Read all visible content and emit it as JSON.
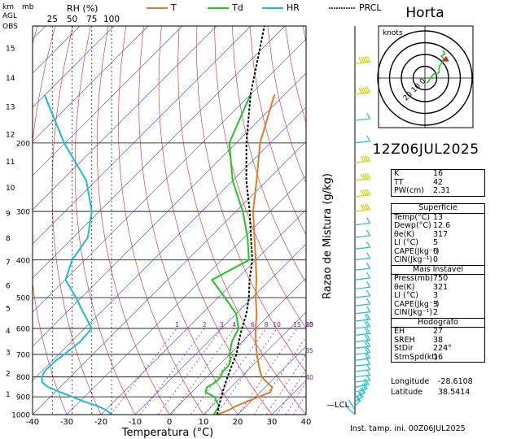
{
  "station": "Horta",
  "datetime": "12Z06JUL2025",
  "footer": "Inst. tamp. ini. 00Z06JUL2025",
  "location": {
    "lon_label": "Longitude",
    "lon": "-28.6108",
    "lat_label": "Latitude",
    "lat": "38.5414"
  },
  "labels": {
    "km": "km",
    "agl": "AGL",
    "mb": "mb",
    "obs": "OBS",
    "rh": "RH (%)",
    "mixing": "Razao de Mistura (g/kg)",
    "xlabel": "Temperatura (°C)",
    "knots": "knots",
    "lcl": "LCL"
  },
  "legend": [
    {
      "name": "T",
      "color": "#e07d28"
    },
    {
      "name": "Td",
      "color": "#1ec81e"
    },
    {
      "name": "HR",
      "color": "#19c0cc"
    },
    {
      "name": "PRCL",
      "color": "#000000"
    }
  ],
  "indices": [
    {
      "k": "K",
      "v": "16"
    },
    {
      "k": "TT",
      "v": "42"
    },
    {
      "k": "PW(cm)",
      "v": "2.31"
    }
  ],
  "superficie": {
    "title": "Superficie",
    "rows": [
      {
        "k": "Temp(°C)",
        "v": "13"
      },
      {
        "k": "Dewp(°C)",
        "v": "12.6"
      },
      {
        "k": "θe(K)",
        "v": "317"
      },
      {
        "k": "LI (°C)",
        "v": "5"
      },
      {
        "k": "CAPE(Jkg⁻¹)",
        "v": "0"
      },
      {
        "k": "CIN(Jkg⁻¹)",
        "v": "0"
      }
    ]
  },
  "instavel": {
    "title": "Mais Instavel",
    "rows": [
      {
        "k": "Press(mb)",
        "v": "750"
      },
      {
        "k": "θe(K)",
        "v": "321"
      },
      {
        "k": "LI (°C)",
        "v": "3"
      },
      {
        "k": "CAPE(Jkg⁻¹)",
        "v": "3"
      },
      {
        "k": "CIN(Jkg⁻¹)",
        "v": "2"
      }
    ]
  },
  "hodografo": {
    "title": "Hodografo",
    "rows": [
      {
        "k": "EH",
        "v": "27"
      },
      {
        "k": "SREH",
        "v": "38"
      },
      {
        "k": "StDir",
        "v": "224°"
      },
      {
        "k": "StmSpd(kt)",
        "v": "16"
      }
    ]
  },
  "chart_data": {
    "type": "skew-t",
    "xlabel": "Temperatura (°C)",
    "xlim": [
      -40,
      40
    ],
    "xticks": [
      -40,
      -30,
      -20,
      -10,
      0,
      10,
      20,
      30,
      40
    ],
    "pressure_ticks": [
      1000,
      900,
      800,
      700,
      600,
      500,
      400,
      300,
      200,
      100
    ],
    "pressure_tick_labels": [
      "1000",
      "900",
      "800",
      "700",
      "600",
      "500",
      "400",
      "300",
      "200",
      "OBS100"
    ],
    "height_km_ticks": [
      1,
      2,
      3,
      4,
      5,
      6,
      7,
      8,
      9,
      10,
      11,
      12,
      13,
      14,
      15
    ],
    "rh_ticks": [
      25,
      50,
      75,
      100
    ],
    "mixing_ratio_labels": [
      1,
      2,
      3,
      4,
      6,
      8,
      10,
      15,
      20,
      25,
      30,
      35,
      40
    ],
    "series": [
      {
        "name": "T",
        "color": "#e07d28",
        "p": [
          1000,
          975,
          950,
          925,
          900,
          875,
          850,
          825,
          800,
          775,
          750,
          725,
          700,
          650,
          600,
          550,
          500,
          450,
          400,
          350,
          300,
          250,
          200,
          150
        ],
        "t": [
          14,
          16,
          17,
          19,
          21,
          23,
          22,
          19,
          16,
          14,
          12,
          10,
          8,
          4,
          0,
          -4,
          -9,
          -14,
          -20,
          -27,
          -35,
          -43,
          -53,
          -63
        ]
      },
      {
        "name": "Td",
        "color": "#1ec81e",
        "p": [
          1000,
          950,
          925,
          900,
          875,
          850,
          825,
          800,
          775,
          750,
          725,
          700,
          650,
          600,
          550,
          500,
          450,
          400,
          350,
          300,
          250,
          200,
          150
        ],
        "td": [
          13,
          12,
          10,
          8,
          4,
          3,
          4,
          4,
          3,
          3,
          2,
          0,
          -3,
          -5,
          -10,
          -18,
          -27,
          -22,
          -29,
          -38,
          -50,
          -62,
          -70
        ]
      },
      {
        "name": "HR",
        "color": "#19c0cc",
        "p": [
          1000,
          975,
          950,
          925,
          900,
          875,
          850,
          825,
          800,
          775,
          750,
          725,
          700,
          650,
          600,
          550,
          500,
          450,
          400,
          350,
          300,
          250,
          200,
          150
        ],
        "rh": [
          100,
          94,
          82,
          65,
          50,
          35,
          20,
          12,
          12,
          15,
          22,
          30,
          40,
          60,
          75,
          65,
          55,
          42,
          50,
          70,
          75,
          68,
          40,
          15
        ]
      },
      {
        "name": "PRCL",
        "color": "#000000",
        "p": [
          1000,
          950,
          900,
          850,
          800,
          750,
          700,
          650,
          600,
          550,
          500,
          450,
          400,
          350,
          300,
          250,
          200,
          150,
          100
        ],
        "t": [
          14,
          12,
          10,
          8,
          6,
          4,
          2,
          -1,
          -4,
          -7,
          -11,
          -16,
          -21,
          -28,
          -36,
          -46,
          -57,
          -70,
          -86
        ]
      }
    ],
    "lcl_pressure": 985,
    "hodograph": {
      "speed_rings": [
        10,
        20,
        30,
        40
      ],
      "ring_labels": [
        "0",
        "10",
        "20"
      ],
      "u": [
        1.4,
        3,
        6,
        7,
        8,
        10,
        12,
        12,
        14,
        16,
        14,
        17,
        16,
        15
      ],
      "v": [
        -7,
        -5,
        3,
        5,
        6,
        6,
        8,
        16,
        21,
        27,
        31,
        34,
        37,
        38
      ],
      "storm_motion_dir": 224,
      "storm_motion_speed": 16
    },
    "wind_barbs": {
      "p": [
        1000,
        975,
        950,
        925,
        900,
        875,
        850,
        825,
        800,
        775,
        750,
        725,
        700,
        675,
        650,
        625,
        600,
        575,
        550,
        525,
        500,
        475,
        450,
        425,
        400,
        375,
        350,
        325,
        300,
        275,
        250,
        225,
        200,
        175,
        150,
        125
      ],
      "speed_kt": [
        10,
        15,
        20,
        20,
        20,
        15,
        15,
        10,
        10,
        10,
        10,
        15,
        15,
        15,
        15,
        15,
        15,
        15,
        10,
        10,
        10,
        10,
        10,
        10,
        10,
        10,
        10,
        10,
        35,
        35,
        35,
        35,
        10,
        10,
        45,
        45
      ],
      "dir": [
        160,
        170,
        200,
        210,
        220,
        230,
        240,
        250,
        250,
        250,
        250,
        250,
        250,
        250,
        250,
        250,
        250,
        250,
        250,
        250,
        250,
        250,
        250,
        250,
        250,
        250,
        250,
        250,
        250,
        250,
        250,
        250,
        250,
        250,
        250,
        250
      ]
    }
  }
}
